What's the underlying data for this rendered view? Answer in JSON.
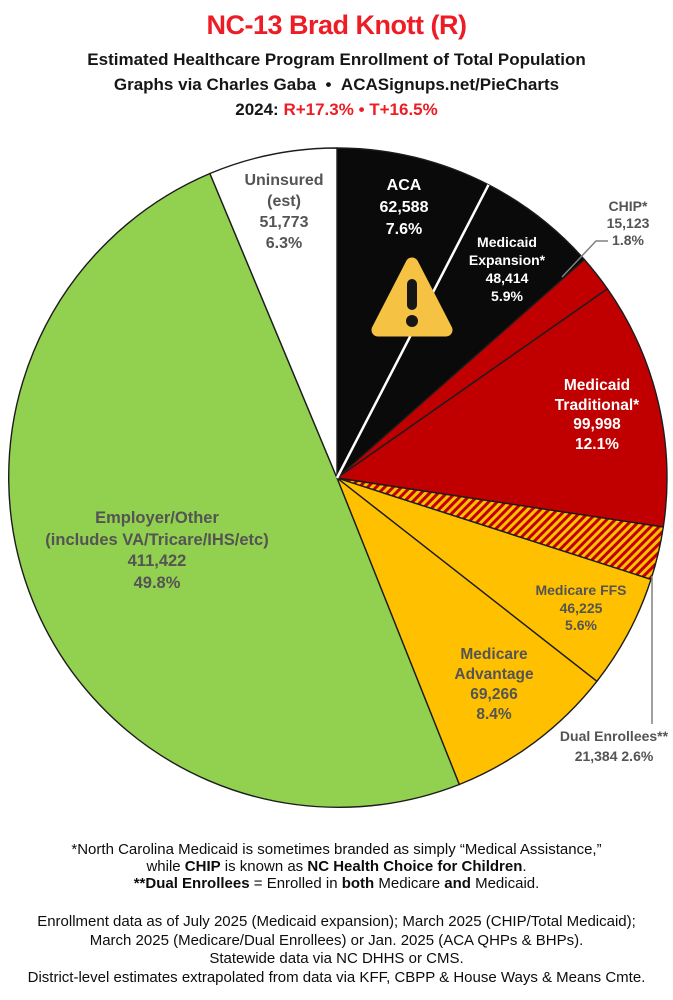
{
  "header": {
    "title": "NC-13 Brad Knott (R)",
    "subtitle1": "Estimated Healthcare Program Enrollment of Total Population",
    "subtitle2": "Graphs via Charles Gaba  •  ACASignups.net/PieCharts",
    "year_prefix": "2024: ",
    "year_values": "R+17.3% • T+16.5%"
  },
  "colors": {
    "title_red": "#ee1c25",
    "label_gray": "#545454",
    "slice_outline": "#1c1c1c",
    "pie_black": "#0a0a0a",
    "pie_red": "#c00000",
    "pie_yellow": "#ffc000",
    "pie_green": "#92d050",
    "pie_white": "#ffffff",
    "hatch_bg": "#ffc000",
    "hatch_stripe": "#c00000",
    "warning_amber": "#f5c243",
    "leader_gray": "#808080"
  },
  "chart_data": {
    "type": "pie",
    "title": "Estimated Healthcare Program Enrollment of Total Population",
    "units": "people",
    "start_angle_deg": 0,
    "direction": "clockwise",
    "center": [
      337,
      338
    ],
    "radius": 330,
    "slices": [
      {
        "id": "aca",
        "name": "ACA",
        "value": 62588,
        "pct": 7.6,
        "color": "#0a0a0a",
        "label_lines": [
          "ACA",
          "62,588",
          "7.6%"
        ]
      },
      {
        "id": "expansion",
        "name": "Medicaid Expansion",
        "value": 48414,
        "pct": 5.9,
        "color": "#0a0a0a",
        "label_lines": [
          "Medicaid",
          "Expansion*",
          "48,414",
          "5.9%"
        ]
      },
      {
        "id": "chip",
        "name": "CHIP",
        "value": 15123,
        "pct": 1.8,
        "color": "#c00000",
        "label_lines": [
          "CHIP*",
          "15,123",
          "1.8%"
        ]
      },
      {
        "id": "trad",
        "name": "Medicaid Traditional",
        "value": 99998,
        "pct": 12.1,
        "color": "#c00000",
        "label_lines": [
          "Medicaid",
          "Traditional*",
          "99,998",
          "12.1%"
        ]
      },
      {
        "id": "dual",
        "name": "Dual Enrollees",
        "value": 21384,
        "pct": 2.6,
        "color": "hatch",
        "label_lines": [
          "Dual Enrollees**",
          "21,384 2.6%"
        ]
      },
      {
        "id": "ffs",
        "name": "Medicare FFS",
        "value": 46225,
        "pct": 5.6,
        "color": "#ffc000",
        "label_lines": [
          "Medicare FFS",
          "46,225",
          "5.6%"
        ]
      },
      {
        "id": "ma",
        "name": "Medicare Advantage",
        "value": 69266,
        "pct": 8.4,
        "color": "#ffc000",
        "label_lines": [
          "Medicare",
          "Advantage",
          "69,266",
          "8.4%"
        ]
      },
      {
        "id": "employer",
        "name": "Employer/Other",
        "value": 411422,
        "pct": 49.8,
        "color": "#92d050",
        "label_lines": [
          "Employer/Other",
          "(includes VA/Tricare/IHS/etc)",
          "411,422",
          "49.8%"
        ]
      },
      {
        "id": "uninsured",
        "name": "Uninsured (est)",
        "value": 51773,
        "pct": 6.3,
        "color": "#ffffff",
        "label_lines": [
          "Uninsured",
          "(est)",
          "51,773",
          "6.3%"
        ]
      }
    ]
  },
  "footnote1": {
    "line1": "*North Carolina Medicaid is sometimes branded as simply “Medical Assistance,”",
    "line2": [
      {
        "t": "while "
      },
      {
        "t": "CHIP"
      },
      {
        "t": " is known as "
      },
      {
        "t": "NC Health Choice for Children"
      },
      {
        "t": "."
      }
    ],
    "line3": [
      {
        "t": "**Dual Enrollees"
      },
      {
        "t": " = Enrolled in "
      },
      {
        "t": "both"
      },
      {
        "t": " Medicare "
      },
      {
        "t": "and"
      },
      {
        "t": " Medicaid."
      }
    ]
  },
  "footnote2": {
    "line1": "Enrollment data as of July 2025 (Medicaid expansion); March 2025 (CHIP/Total Medicaid);",
    "line2": "March 2025 (Medicare/Dual Enrollees) or Jan. 2025 (ACA QHPs & BHPs).",
    "line3": "Statewide data via NC DHHS or CMS.",
    "line4": "District-level estimates extrapolated from data via KFF, CBPP & House Ways & Means Cmte."
  }
}
